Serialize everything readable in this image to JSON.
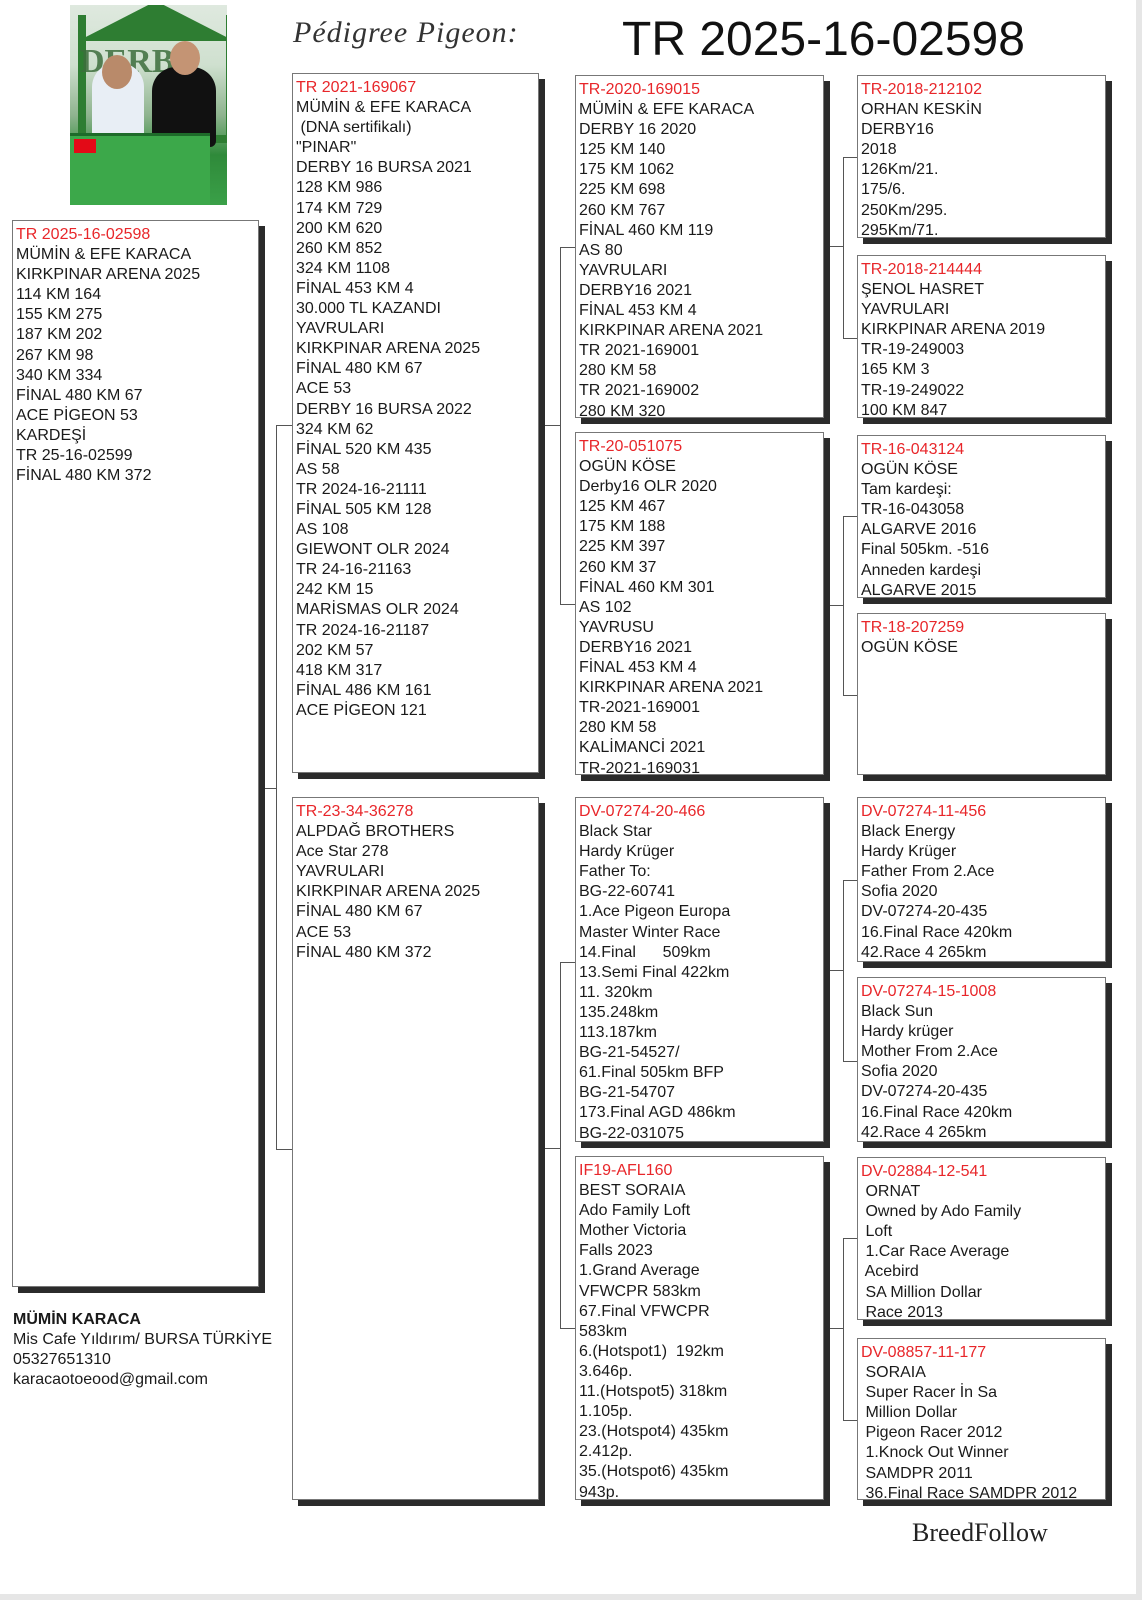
{
  "header": {
    "title": "Pédigree Pigeon:",
    "ring": "TR 2025-16-02598"
  },
  "boxes": {
    "subject": [
      "TR 2025-16-02598",
      "MÜMİN & EFE KARACA",
      "KIRKPINAR ARENA 2025",
      "114 KM 164",
      "155 KM 275",
      "187 KM 202",
      "267 KM 98",
      "340 KM 334",
      "FİNAL 480 KM 67",
      "ACE PİGEON 53",
      "KARDEŞİ",
      "TR 25-16-02599",
      "FİNAL 480 KM 372"
    ],
    "sire": [
      "TR 2021-169067",
      "MÜMİN & EFE KARACA",
      " (DNA sertifikalı)",
      "\"PINAR\"",
      "DERBY 16 BURSA 2021",
      "128 KM 986",
      "174 KM 729",
      "200 KM 620",
      "260 KM 852",
      "324 KM 1108",
      "FİNAL 453 KM 4",
      "30.000 TL KAZANDI",
      "YAVRULARI",
      "KIRKPINAR ARENA 2025",
      "FİNAL 480 KM 67",
      "ACE 53",
      "DERBY 16 BURSA 2022",
      "324 KM 62",
      "FİNAL 520 KM 435",
      "AS 58",
      "TR 2024-16-21111",
      "FİNAL 505 KM 128",
      "AS 108",
      "GIEWONT OLR 2024",
      "TR 24-16-21163",
      "242 KM 15",
      "MARİSMAS OLR 2024",
      "TR 2024-16-21187",
      "202 KM 57",
      "418 KM 317",
      "FİNAL 486 KM 161",
      "ACE PİGEON 121"
    ],
    "dam": [
      "TR-23-34-36278",
      "ALPDAĞ BROTHERS",
      "Ace Star 278",
      "YAVRULARI",
      "KIRKPINAR ARENA 2025",
      "FİNAL 480 KM 67",
      "ACE 53",
      "FİNAL 480 KM 372"
    ],
    "ss": [
      "TR-2020-169015",
      "MÜMİN & EFE KARACA",
      "DERBY 16 2020",
      "125 KM 140",
      "175 KM 1062",
      "225 KM 698",
      "260 KM 767",
      "FİNAL 460 KM 119",
      "AS 80",
      "YAVRULARI",
      "DERBY16 2021",
      "FİNAL 453 KM 4",
      "KIRKPINAR ARENA 2021",
      "TR 2021-169001",
      "280 KM 58",
      "TR 2021-169002",
      "280 KM 320"
    ],
    "sd": [
      "TR-20-051075",
      "OGÜN KÖSE",
      "Derby16 OLR 2020",
      "125 KM 467",
      "175 KM 188",
      "225 KM 397",
      "260 KM 37",
      "FİNAL 460 KM 301",
      "AS 102",
      "YAVRUSU",
      "DERBY16 2021",
      "FİNAL 453 KM 4",
      "KIRKPINAR ARENA 2021",
      "TR-2021-169001",
      "280 KM 58",
      "KALİMANCİ 2021",
      "TR-2021-169031"
    ],
    "ds": [
      "DV-07274-20-466",
      "Black Star",
      "Hardy Krüger",
      "Father To:",
      "BG-22-60741",
      "1.Ace Pigeon Europa",
      "Master Winter Race",
      "14.Final      509km",
      "13.Semi Final 422km",
      "11. 320km",
      "135.248km",
      "113.187km",
      "BG-21-54527/",
      "61.Final 505km BFP",
      "BG-21-54707",
      "173.Final AGD 486km",
      "BG-22-031075"
    ],
    "dd": [
      "IF19-AFL160",
      "BEST SORAIA",
      "Ado Family Loft",
      "Mother Victoria",
      "Falls 2023",
      "1.Grand Average",
      "VFWCPR 583km",
      "67.Final VFWCPR",
      "583km",
      "6.(Hotspot1)  192km",
      "3.646p.",
      "11.(Hotspot5) 318km",
      "1.105p.",
      "23.(Hotspot4) 435km",
      "2.412p.",
      "35.(Hotspot6) 435km",
      "943p."
    ],
    "sss": [
      "TR-2018-212102",
      "ORHAN KESKİN",
      "DERBY16",
      "2018",
      "126Km/21.",
      "175/6.",
      "250Km/295.",
      "295Km/71."
    ],
    "ssd": [
      "TR-2018-214444",
      "ŞENOL HASRET",
      "YAVRULARI",
      "KIRKPINAR ARENA 2019",
      "TR-19-249003",
      "165 KM 3",
      "TR-19-249022",
      "100 KM 847"
    ],
    "sds": [
      "TR-16-043124",
      "OGÜN KÖSE",
      "Tam kardeşi:",
      "TR-16-043058",
      "ALGARVE 2016",
      "Final 505km. -516",
      "Anneden kardeşi",
      "ALGARVE 2015"
    ],
    "sdd": [
      "TR-18-207259",
      "OGÜN KÖSE"
    ],
    "dss": [
      "DV-07274-11-456",
      "Black Energy",
      "Hardy Krüger",
      "Father From 2.Ace",
      "Sofia 2020",
      "DV-07274-20-435",
      "16.Final Race 420km",
      "42.Race 4 265km"
    ],
    "dsd": [
      "DV-07274-15-1008",
      "Black Sun",
      "Hardy krüger",
      "Mother From 2.Ace",
      "Sofia 2020",
      "DV-07274-20-435",
      "16.Final Race 420km",
      "42.Race 4 265km"
    ],
    "dds": [
      "DV-02884-12-541",
      " ORNAT",
      " Owned by Ado Family",
      " Loft",
      " 1.Car Race Average",
      " Acebird",
      " SA Million Dollar",
      " Race 2013"
    ],
    "ddd": [
      "DV-08857-11-177",
      " SORAIA",
      " Super Racer İn Sa",
      " Million Dollar",
      " Pigeon Racer 2012",
      " 1.Knock Out Winner",
      " SAMDPR 2011",
      " 36.Final Race SAMDPR 2012"
    ]
  },
  "owner": {
    "name": "MÜMİN KARACA",
    "address": "Mis Cafe Yıldırım/ BURSA TÜRKİYE",
    "phone": "05327651310",
    "email": "karacaotoeood@gmail.com"
  },
  "brand": "BreedFollow",
  "colors": {
    "ring_number": "#e8262a",
    "text": "#1a1a1a",
    "shadow": "#2b2b2b"
  }
}
